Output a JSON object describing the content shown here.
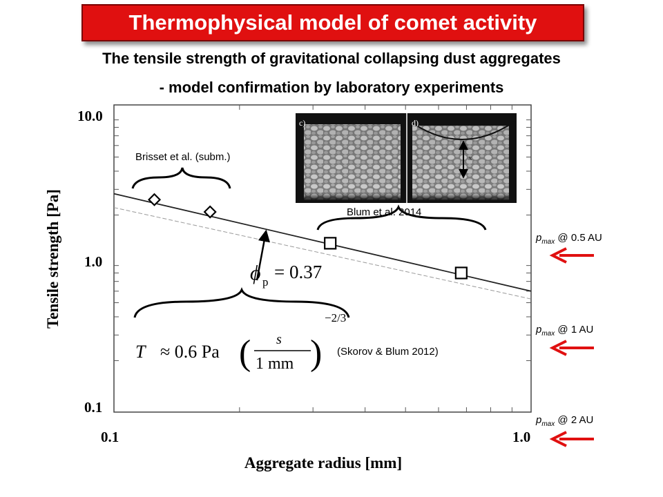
{
  "header": {
    "title": "Thermophysical model of comet activity",
    "subtitle_line1": "The tensile strength of gravitational collapsing dust aggregates",
    "subtitle_line2": "- model confirmation by laboratory experiments"
  },
  "chart_data": {
    "type": "scatter",
    "xlabel": "Aggregate radius [mm]",
    "ylabel": "Tensile strength [Pa]",
    "x_scale": "log",
    "y_scale": "log",
    "xlim": [
      0.1,
      1.0
    ],
    "ylim": [
      0.1,
      10.0
    ],
    "x_ticks": [
      "0.1",
      "1.0"
    ],
    "y_ticks": [
      "10.0",
      "1.0",
      "0.1"
    ],
    "series": [
      {
        "name": "Brisset et al. (subm.)",
        "marker": "diamond",
        "x": [
          0.125,
          0.17
        ],
        "y": [
          2.55,
          2.1
        ]
      },
      {
        "name": "Blum et al. 2014",
        "marker": "square",
        "x": [
          0.33,
          0.68
        ],
        "y": [
          1.28,
          0.8
        ]
      }
    ],
    "fit_line": {
      "style": "solid",
      "points": [
        [
          0.1,
          2.8
        ],
        [
          1.0,
          0.6
        ]
      ]
    },
    "model_line": {
      "style": "dashed",
      "points": [
        [
          0.1,
          2.25
        ],
        [
          1.0,
          0.53
        ]
      ]
    },
    "annotations": {
      "phi_symbol": "ϕ",
      "phi_sub": "p",
      "phi_value": "= 0.37",
      "formula_lhs": "T",
      "formula_approx": "≈ 0.6 Pa",
      "formula_num": "s",
      "formula_den": "1 mm",
      "formula_exp": "−2/3",
      "formula_ref": "(Skorov & Blum 2012)",
      "image_label_c": "c)",
      "image_label_d": "d)",
      "image_label_x": "x"
    },
    "pressure_markers": [
      {
        "symbol": "p",
        "sub": "max",
        "label": "@ 0.5 AU"
      },
      {
        "symbol": "p",
        "sub": "max",
        "label": "@ 1 AU"
      },
      {
        "symbol": "p",
        "sub": "max",
        "label": "@ 2 AU"
      }
    ],
    "colors": {
      "arrow": "#e01010",
      "title_bg": "#e01010",
      "axis": "#333333"
    }
  }
}
